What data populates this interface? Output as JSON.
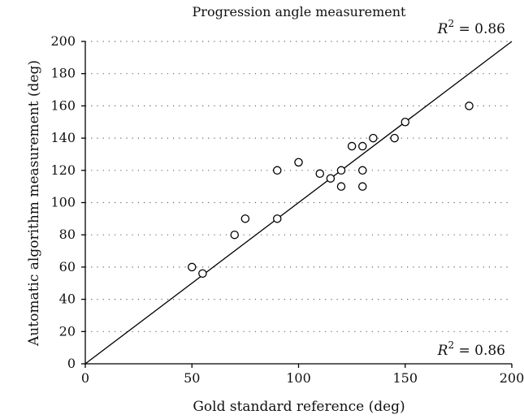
{
  "chart_data": {
    "type": "scatter",
    "title": "Progression angle measurement",
    "xlabel": "Gold standard reference (deg)",
    "ylabel": "Automatic algorithm measurement (deg)",
    "xlim": [
      0,
      200
    ],
    "ylim": [
      0,
      200
    ],
    "xticks": [
      0,
      50,
      100,
      150,
      200
    ],
    "yticks": [
      0,
      20,
      40,
      60,
      80,
      100,
      120,
      140,
      160,
      180,
      200
    ],
    "grid": "horizontal dotted",
    "points": [
      {
        "x": 50,
        "y": 60
      },
      {
        "x": 55,
        "y": 56
      },
      {
        "x": 70,
        "y": 80
      },
      {
        "x": 75,
        "y": 90
      },
      {
        "x": 90,
        "y": 90
      },
      {
        "x": 90,
        "y": 120
      },
      {
        "x": 100,
        "y": 125
      },
      {
        "x": 110,
        "y": 118
      },
      {
        "x": 115,
        "y": 115
      },
      {
        "x": 120,
        "y": 120
      },
      {
        "x": 120,
        "y": 110
      },
      {
        "x": 125,
        "y": 135
      },
      {
        "x": 130,
        "y": 135
      },
      {
        "x": 130,
        "y": 120
      },
      {
        "x": 130,
        "y": 110
      },
      {
        "x": 135,
        "y": 140
      },
      {
        "x": 145,
        "y": 140
      },
      {
        "x": 150,
        "y": 150
      },
      {
        "x": 180,
        "y": 160
      }
    ],
    "fit_line": {
      "x": [
        0,
        200
      ],
      "y": [
        0,
        200
      ]
    },
    "annotations": [
      {
        "text_prefix": "R",
        "superscript": "2",
        "text_suffix": " = 0.86",
        "position": "top-right"
      },
      {
        "text_prefix": "R",
        "superscript": "2",
        "text_suffix": " = 0.86",
        "position": "bottom-right"
      }
    ]
  }
}
